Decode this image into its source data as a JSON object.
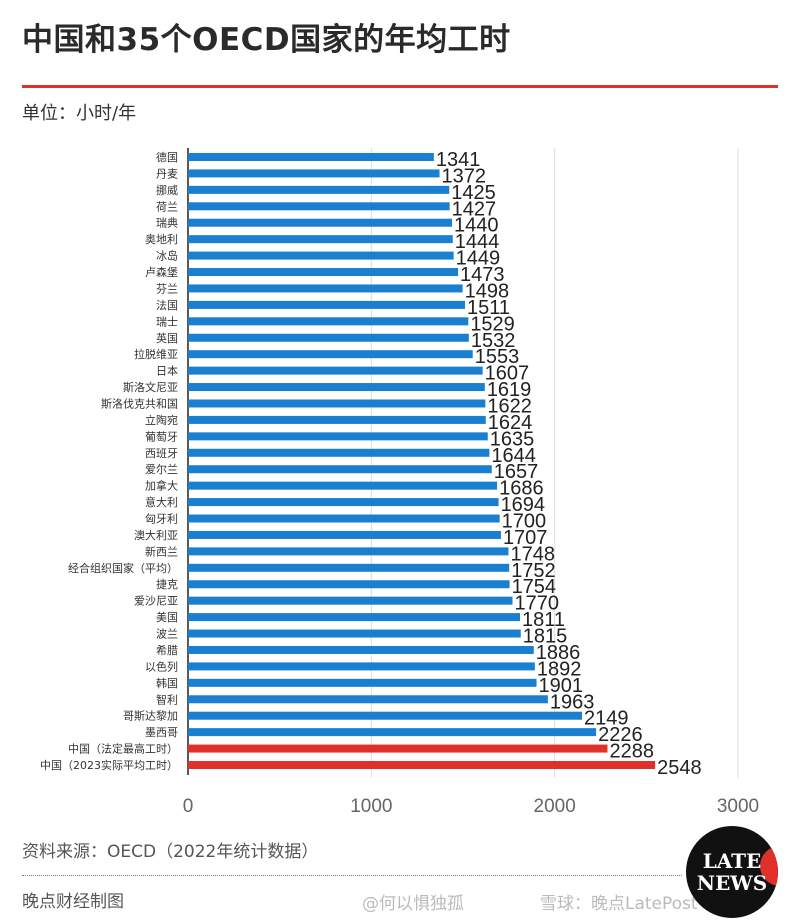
{
  "title": "中国和35个OECD国家的年均工时",
  "unit": "单位：小时/年",
  "source": "资料来源：OECD（2022年统计数据）",
  "credit": "晚点财经制图",
  "watermarks": {
    "weibo": "@何以惧独孤",
    "xueqiu": "雪球：晚点LatePost"
  },
  "logo_text": [
    "LATE",
    "NEWS"
  ],
  "colors": {
    "oecd": "#1a7fd0",
    "china": "#e0302a",
    "title_rule": "#e0302a"
  },
  "chart_data": {
    "type": "bar",
    "orientation": "horizontal",
    "xlim": [
      0,
      3000
    ],
    "xticks": [
      "0",
      "1000",
      "2000",
      "3000"
    ],
    "grid": true,
    "categories": [
      "德国",
      "丹麦",
      "挪威",
      "荷兰",
      "瑞典",
      "奥地利",
      "冰岛",
      "卢森堡",
      "芬兰",
      "法国",
      "瑞士",
      "英国",
      "拉脱维亚",
      "日本",
      "斯洛文尼亚",
      "斯洛伐克共和国",
      "立陶宛",
      "葡萄牙",
      "西班牙",
      "爱尔兰",
      "加拿大",
      "意大利",
      "匈牙利",
      "澳大利亚",
      "新西兰",
      "经合组织国家（平均）",
      "捷克",
      "爱沙尼亚",
      "美国",
      "波兰",
      "希腊",
      "以色列",
      "韩国",
      "智利",
      "哥斯达黎加",
      "墨西哥",
      "中国（法定最高工时）",
      "中国（2023实际平均工时）"
    ],
    "values": [
      1341,
      1372,
      1425,
      1427,
      1440,
      1444,
      1449,
      1473,
      1498,
      1511,
      1529,
      1532,
      1553,
      1607,
      1619,
      1622,
      1624,
      1635,
      1644,
      1657,
      1686,
      1694,
      1700,
      1707,
      1748,
      1752,
      1754,
      1770,
      1811,
      1815,
      1886,
      1892,
      1901,
      1963,
      2149,
      2226,
      2288,
      2548
    ],
    "highlight": [
      "中国（法定最高工时）",
      "中国（2023实际平均工时）"
    ]
  }
}
